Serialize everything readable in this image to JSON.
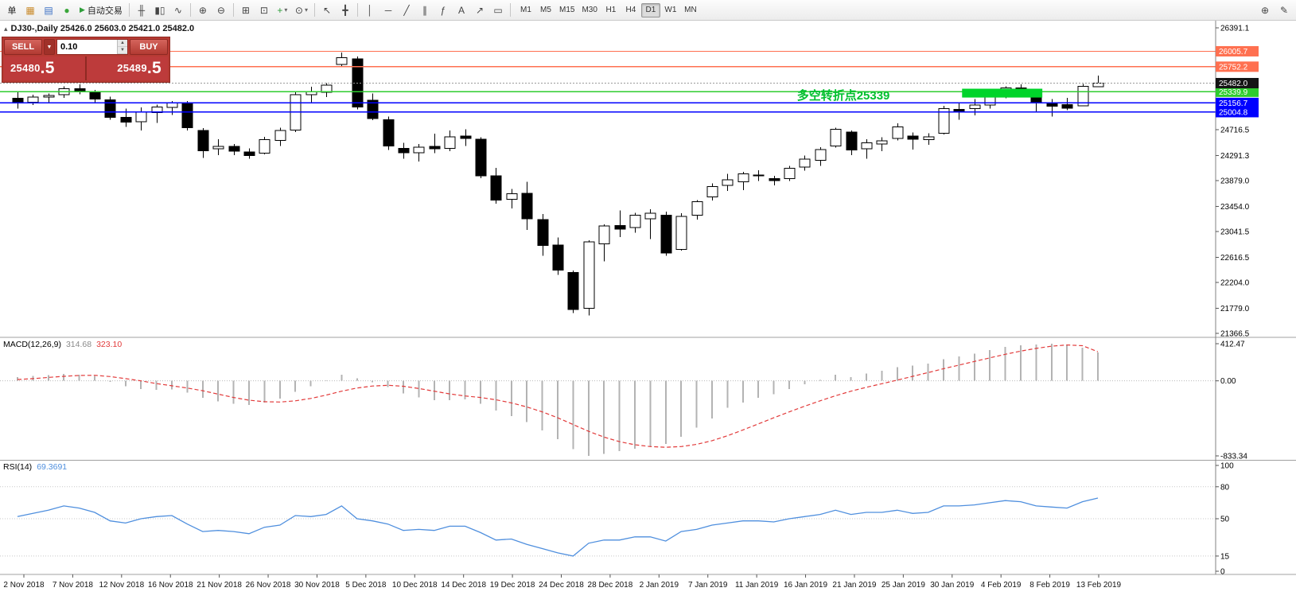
{
  "toolbar": {
    "groups": [
      {
        "type": "button",
        "name": "new-order-button",
        "label": "单"
      },
      {
        "type": "icon",
        "name": "new-chart-icon",
        "glyph": "▦",
        "color": "#c98a2b"
      },
      {
        "type": "icon",
        "name": "profiles-icon",
        "glyph": "▤",
        "color": "#3a6fc4"
      },
      {
        "type": "icon",
        "name": "alerts-icon",
        "glyph": "●",
        "color": "#3aa63a"
      },
      {
        "type": "button",
        "name": "autotrading-button",
        "label": "自动交易",
        "glyph": "▶",
        "glyph_color": "#2e9e3a"
      },
      {
        "type": "sep"
      },
      {
        "type": "icon",
        "name": "bar-chart-icon",
        "glyph": "╫",
        "color": "#444"
      },
      {
        "type": "icon",
        "name": "candlestick-chart-icon",
        "glyph": "▮▯",
        "color": "#444"
      },
      {
        "type": "icon",
        "name": "line-chart-icon",
        "glyph": "∿",
        "color": "#444"
      },
      {
        "type": "sep"
      },
      {
        "type": "icon",
        "name": "zoom-in-icon",
        "glyph": "⊕",
        "color": "#444"
      },
      {
        "type": "icon",
        "name": "zoom-out-icon",
        "glyph": "⊖",
        "color": "#444"
      },
      {
        "type": "sep"
      },
      {
        "type": "icon",
        "name": "tile-windows-icon",
        "glyph": "⊞",
        "color": "#444"
      },
      {
        "type": "icon",
        "name": "auto-arrange-icon",
        "glyph": "⊡",
        "color": "#444"
      },
      {
        "type": "icon",
        "name": "indicators-icon",
        "glyph": "+",
        "color": "#2e9e3a",
        "dd": true
      },
      {
        "type": "icon",
        "name": "periods-icon",
        "glyph": "⊙",
        "color": "#444",
        "dd": true
      },
      {
        "type": "sep"
      },
      {
        "type": "icon",
        "name": "cursor-icon",
        "glyph": "↖",
        "color": "#444"
      },
      {
        "type": "icon",
        "name": "crosshair-icon",
        "glyph": "╋",
        "color": "#444"
      },
      {
        "type": "sep"
      },
      {
        "type": "icon",
        "name": "vertical-line-icon",
        "glyph": "│",
        "color": "#444"
      },
      {
        "type": "icon",
        "name": "horizontal-line-icon",
        "glyph": "─",
        "color": "#444"
      },
      {
        "type": "icon",
        "name": "trendline-icon",
        "glyph": "╱",
        "color": "#444"
      },
      {
        "type": "icon",
        "name": "channel-icon",
        "glyph": "∥",
        "color": "#444"
      },
      {
        "type": "icon",
        "name": "fibonacci-icon",
        "glyph": "ƒ",
        "color": "#444"
      },
      {
        "type": "icon",
        "name": "text-label-icon",
        "glyph": "A",
        "color": "#444"
      },
      {
        "type": "icon",
        "name": "arrow-tool-icon",
        "glyph": "↗",
        "color": "#444"
      },
      {
        "type": "icon",
        "name": "shapes-icon",
        "glyph": "▭",
        "color": "#444"
      },
      {
        "type": "sep"
      }
    ],
    "timeframes": [
      "M1",
      "M5",
      "M15",
      "M30",
      "H1",
      "H4",
      "D1",
      "W1",
      "MN"
    ],
    "active_timeframe": "D1",
    "right_icons": [
      {
        "name": "search-icon",
        "glyph": "⊕"
      },
      {
        "name": "edit-icon",
        "glyph": "✎"
      }
    ]
  },
  "ui": {
    "dropdown_glyph": "▼",
    "spin_up": "▲",
    "spin_down": "▼",
    "tf_dd": "▾"
  },
  "chart_header": {
    "marker": "▴",
    "symbol_line": "DJ30-,Daily 25426.0 25603.0 25421.0 25482.0"
  },
  "trade_panel": {
    "sell_label": "SELL",
    "buy_label": "BUY",
    "volume": "0.10",
    "sell_price_main": "25480",
    "sell_price_frac": ".5",
    "buy_price_main": "25489",
    "buy_price_frac": ".5"
  },
  "chart_data": {
    "type": "candlestick",
    "symbol": "DJ30-",
    "period": "Daily",
    "ohlc": {
      "open": 25426.0,
      "high": 25603.0,
      "low": 25421.0,
      "close": 25482.0
    },
    "price_range": {
      "top": 26391.1,
      "bottom": 21366.5
    },
    "price_axis_ticks": [
      26391.1,
      24716.5,
      24291.3,
      23879.0,
      23454.0,
      23041.5,
      22616.5,
      22204.0,
      21779.0,
      21366.5
    ],
    "x_labels": [
      "2 Nov 2018",
      "7 Nov 2018",
      "12 Nov 2018",
      "16 Nov 2018",
      "21 Nov 2018",
      "26 Nov 2018",
      "30 Nov 2018",
      "5 Dec 2018",
      "10 Dec 2018",
      "14 Dec 2018",
      "19 Dec 2018",
      "24 Dec 2018",
      "28 Dec 2018",
      "2 Jan 2019",
      "7 Jan 2019",
      "11 Jan 2019",
      "16 Jan 2019",
      "21 Jan 2019",
      "25 Jan 2019",
      "30 Jan 2019",
      "4 Feb 2019",
      "8 Feb 2019",
      "13 Feb 2019"
    ],
    "hlines": [
      {
        "price": 26005.7,
        "label": "26005.7",
        "color": "#ff7050"
      },
      {
        "price": 25752.2,
        "label": "25752.2",
        "color": "#ff7050"
      },
      {
        "price": 25339.9,
        "label": "25339.9",
        "color": "#2ecc2e"
      },
      {
        "price": 25156.7,
        "label": "25156.7",
        "color": "#0000ff"
      },
      {
        "price": 25004.8,
        "label": "25004.8",
        "color": "#0000ff"
      }
    ],
    "current_price": {
      "price": 25482.0,
      "label": "25482.0",
      "color": "#141414"
    },
    "highlight_rect": {
      "start_index": 61.2,
      "end_index": 66.4,
      "top_price": 25390,
      "bottom_price": 25245,
      "color": "#00d42a"
    },
    "annotation": {
      "text": "多空转折点25339",
      "index": 50.5,
      "price": 25290,
      "color": "#00bf2f"
    },
    "candles": [
      [
        25230,
        25330,
        25060,
        25170
      ],
      [
        25170,
        25290,
        25120,
        25250
      ],
      [
        25250,
        25310,
        25160,
        25280
      ],
      [
        25290,
        25430,
        25240,
        25390
      ],
      [
        25390,
        25460,
        25300,
        25350
      ],
      [
        25340,
        25370,
        25150,
        25220
      ],
      [
        25210,
        25260,
        24880,
        24920
      ],
      [
        24920,
        25060,
        24760,
        24840
      ],
      [
        24850,
        25080,
        24700,
        25010
      ],
      [
        25000,
        25130,
        24830,
        25090
      ],
      [
        25080,
        25190,
        24960,
        25160
      ],
      [
        25140,
        25190,
        24700,
        24750
      ],
      [
        24700,
        24740,
        24250,
        24370
      ],
      [
        24400,
        24560,
        24300,
        24440
      ],
      [
        24440,
        24480,
        24300,
        24360
      ],
      [
        24350,
        24410,
        24240,
        24290
      ],
      [
        24330,
        24600,
        24310,
        24550
      ],
      [
        24540,
        24750,
        24450,
        24700
      ],
      [
        24710,
        25330,
        24680,
        25290
      ],
      [
        25290,
        25420,
        25160,
        25340
      ],
      [
        25330,
        25480,
        25250,
        25450
      ],
      [
        25790,
        25985,
        25750,
        25900
      ],
      [
        25880,
        25920,
        25050,
        25090
      ],
      [
        25200,
        25310,
        24870,
        24900
      ],
      [
        24880,
        24930,
        24380,
        24450
      ],
      [
        24410,
        24500,
        24240,
        24340
      ],
      [
        24340,
        24480,
        24190,
        24430
      ],
      [
        24440,
        24650,
        24330,
        24400
      ],
      [
        24410,
        24700,
        24360,
        24600
      ],
      [
        24610,
        24720,
        24450,
        24570
      ],
      [
        24560,
        24590,
        23920,
        23960
      ],
      [
        23960,
        24090,
        23500,
        23560
      ],
      [
        23570,
        23740,
        23420,
        23660
      ],
      [
        23670,
        23860,
        23070,
        23250
      ],
      [
        23240,
        23330,
        22640,
        22810
      ],
      [
        22820,
        22940,
        22330,
        22410
      ],
      [
        22370,
        22400,
        21700,
        21760
      ],
      [
        21780,
        22900,
        21660,
        22870
      ],
      [
        22840,
        23160,
        22550,
        23130
      ],
      [
        23140,
        23390,
        22950,
        23080
      ],
      [
        23110,
        23350,
        23020,
        23310
      ],
      [
        23250,
        23410,
        22920,
        23340
      ],
      [
        23310,
        23370,
        22640,
        22690
      ],
      [
        22750,
        23340,
        22730,
        23290
      ],
      [
        23310,
        23560,
        23240,
        23530
      ],
      [
        23610,
        23830,
        23550,
        23780
      ],
      [
        23800,
        23990,
        23710,
        23890
      ],
      [
        23860,
        24020,
        23720,
        23990
      ],
      [
        23970,
        24050,
        23870,
        23960
      ],
      [
        23910,
        23960,
        23800,
        23880
      ],
      [
        23910,
        24120,
        23870,
        24080
      ],
      [
        24100,
        24290,
        24040,
        24230
      ],
      [
        24210,
        24430,
        24120,
        24390
      ],
      [
        24450,
        24750,
        24420,
        24720
      ],
      [
        24680,
        24700,
        24300,
        24380
      ],
      [
        24400,
        24560,
        24240,
        24500
      ],
      [
        24480,
        24590,
        24360,
        24530
      ],
      [
        24570,
        24820,
        24540,
        24760
      ],
      [
        24610,
        24670,
        24390,
        24560
      ],
      [
        24550,
        24660,
        24470,
        24600
      ],
      [
        24660,
        25110,
        24640,
        25060
      ],
      [
        25050,
        25150,
        24880,
        25010
      ],
      [
        25060,
        25220,
        24950,
        25120
      ],
      [
        25120,
        25290,
        25060,
        25260
      ],
      [
        25270,
        25430,
        25230,
        25400
      ],
      [
        25400,
        25460,
        25280,
        25370
      ],
      [
        25330,
        25360,
        25000,
        25170
      ],
      [
        25150,
        25220,
        24930,
        25100
      ],
      [
        25130,
        25240,
        25040,
        25070
      ],
      [
        25110,
        25470,
        25100,
        25430
      ],
      [
        25426,
        25603,
        25421,
        25482
      ]
    ],
    "macd": {
      "label": "MACD(12,26,9)",
      "value_main": "314.68",
      "value_signal": "323.10",
      "axis": {
        "top": 412.47,
        "zero": "0.00",
        "bottom": -833.34
      },
      "hist_color": "#b3b3b3",
      "signal_color": "#e23a3a",
      "histogram": [
        40,
        55,
        65,
        75,
        70,
        55,
        -10,
        -60,
        -90,
        -100,
        -95,
        -130,
        -190,
        -230,
        -255,
        -270,
        -240,
        -195,
        -120,
        -60,
        -5,
        70,
        30,
        -15,
        -70,
        -140,
        -185,
        -215,
        -215,
        -205,
        -255,
        -330,
        -390,
        -460,
        -550,
        -650,
        -760,
        -833.34,
        -810,
        -780,
        -755,
        -730,
        -700,
        -620,
        -520,
        -420,
        -300,
        -240,
        -190,
        -150,
        -90,
        -40,
        10,
        70,
        40,
        80,
        110,
        150,
        170,
        190,
        240,
        270,
        300,
        340,
        375,
        395,
        405,
        412.47,
        400,
        370,
        314.68
      ],
      "signal": [
        15,
        25,
        38,
        50,
        60,
        62,
        48,
        25,
        0,
        -30,
        -55,
        -80,
        -110,
        -148,
        -185,
        -215,
        -232,
        -235,
        -222,
        -195,
        -158,
        -115,
        -80,
        -58,
        -50,
        -60,
        -85,
        -115,
        -145,
        -168,
        -185,
        -210,
        -245,
        -290,
        -345,
        -410,
        -485,
        -560,
        -625,
        -675,
        -710,
        -730,
        -738,
        -730,
        -705,
        -665,
        -610,
        -545,
        -478,
        -410,
        -345,
        -282,
        -222,
        -165,
        -115,
        -72,
        -32,
        8,
        50,
        92,
        135,
        175,
        215,
        255,
        295,
        330,
        360,
        385,
        398,
        390,
        323.1
      ]
    },
    "rsi": {
      "label": "RSI(14)",
      "value": "69.3691",
      "color": "#4f8fde",
      "levels": [
        80,
        50,
        15
      ],
      "axis_labels": [
        100,
        80,
        50,
        15,
        0
      ],
      "values": [
        52,
        55,
        58,
        62,
        60,
        56,
        48,
        46,
        50,
        52,
        53,
        45,
        38,
        39,
        38,
        36,
        42,
        44,
        53,
        52,
        54,
        62,
        50,
        48,
        45,
        39,
        40,
        39,
        43,
        43,
        37,
        30,
        31,
        26,
        22,
        18,
        15,
        27,
        30,
        30,
        33,
        33,
        29,
        38,
        40,
        44,
        46,
        48,
        48,
        47,
        50,
        52,
        54,
        58,
        54,
        56,
        56,
        58,
        55,
        56,
        62,
        62,
        63,
        65,
        67,
        66,
        62,
        61,
        60,
        66,
        69.37
      ]
    }
  }
}
